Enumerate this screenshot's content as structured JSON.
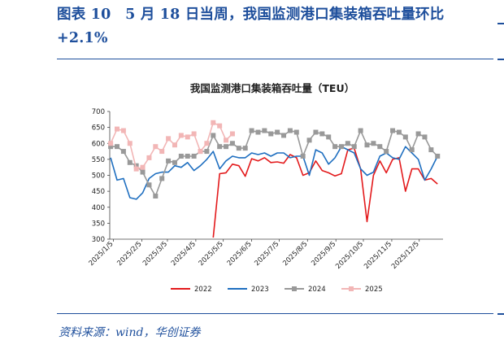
{
  "figure": {
    "title": "图表 10　5 月 18 日当周，我国监测港口集装箱吞吐量环比+2.1%",
    "source": "资料来源：wind，华创证券"
  },
  "chart_data": {
    "type": "line",
    "title": "我国监测港口集装箱吞吐量（TEU）",
    "ylim": [
      300,
      700
    ],
    "yticks": [
      300,
      350,
      400,
      450,
      500,
      550,
      600,
      650,
      700
    ],
    "xlim": [
      "2025-01-01",
      "2025-12-31"
    ],
    "xticks": [
      "2025/1/5",
      "2025/2/5",
      "2025/3/5",
      "2025/4/5",
      "2025/5/5",
      "2025/6/5",
      "2025/7/5",
      "2025/8/5",
      "2025/9/5",
      "2025/10/5",
      "2025/11/5",
      "2025/12/5"
    ],
    "grid": false,
    "legend": "bottom",
    "series": [
      {
        "name": "2022",
        "color": "#e31a1c",
        "marker": "none",
        "x": [
          "2025-04-24",
          "2025-05-01",
          "2025-05-08",
          "2025-05-15",
          "2025-05-22",
          "2025-05-29",
          "2025-06-05",
          "2025-06-12",
          "2025-06-19",
          "2025-06-26",
          "2025-07-03",
          "2025-07-10",
          "2025-07-17",
          "2025-07-24",
          "2025-07-31",
          "2025-08-07",
          "2025-08-14",
          "2025-08-21",
          "2025-08-28",
          "2025-09-04",
          "2025-09-11",
          "2025-09-18",
          "2025-09-25",
          "2025-10-02",
          "2025-10-09",
          "2025-10-16",
          "2025-10-23",
          "2025-10-30",
          "2025-11-06",
          "2025-11-13",
          "2025-11-20",
          "2025-11-27",
          "2025-12-04",
          "2025-12-11",
          "2025-12-18",
          "2025-12-25"
        ],
        "y": [
          305,
          505,
          508,
          535,
          530,
          497,
          552,
          545,
          555,
          540,
          542,
          538,
          565,
          555,
          500,
          508,
          545,
          515,
          508,
          498,
          505,
          580,
          585,
          520,
          355,
          500,
          545,
          508,
          550,
          555,
          450,
          520,
          520,
          485,
          490,
          473
        ]
      },
      {
        "name": "2023",
        "color": "#1f6fc0",
        "marker": "none",
        "x": [
          "2025-01-02",
          "2025-01-09",
          "2025-01-16",
          "2025-01-23",
          "2025-01-30",
          "2025-02-06",
          "2025-02-13",
          "2025-02-20",
          "2025-02-27",
          "2025-03-06",
          "2025-03-13",
          "2025-03-20",
          "2025-03-27",
          "2025-04-03",
          "2025-04-10",
          "2025-04-17",
          "2025-04-24",
          "2025-05-01",
          "2025-05-08",
          "2025-05-15",
          "2025-05-22",
          "2025-05-29",
          "2025-06-05",
          "2025-06-12",
          "2025-06-19",
          "2025-06-26",
          "2025-07-03",
          "2025-07-10",
          "2025-07-17",
          "2025-07-24",
          "2025-07-31",
          "2025-08-07",
          "2025-08-14",
          "2025-08-21",
          "2025-08-28",
          "2025-09-04",
          "2025-09-11",
          "2025-09-18",
          "2025-09-25",
          "2025-10-02",
          "2025-10-09",
          "2025-10-16",
          "2025-10-23",
          "2025-10-30",
          "2025-11-06",
          "2025-11-13",
          "2025-11-20",
          "2025-11-27",
          "2025-12-04",
          "2025-12-11",
          "2025-12-18",
          "2025-12-25"
        ],
        "y": [
          555,
          485,
          490,
          430,
          425,
          445,
          490,
          505,
          510,
          510,
          530,
          525,
          540,
          515,
          530,
          550,
          575,
          520,
          545,
          560,
          555,
          555,
          570,
          565,
          570,
          560,
          570,
          570,
          555,
          560,
          560,
          500,
          580,
          570,
          535,
          555,
          590,
          580,
          570,
          520,
          500,
          510,
          560,
          570,
          555,
          550,
          590,
          570,
          550,
          485,
          520,
          560
        ]
      },
      {
        "name": "2024",
        "color": "#999999",
        "marker": "square",
        "x": [
          "2025-01-02",
          "2025-01-09",
          "2025-01-16",
          "2025-01-23",
          "2025-01-30",
          "2025-02-06",
          "2025-02-13",
          "2025-02-20",
          "2025-02-27",
          "2025-03-06",
          "2025-03-13",
          "2025-03-20",
          "2025-03-27",
          "2025-04-03",
          "2025-04-10",
          "2025-04-17",
          "2025-04-24",
          "2025-05-01",
          "2025-05-08",
          "2025-05-15",
          "2025-05-22",
          "2025-05-29",
          "2025-06-05",
          "2025-06-12",
          "2025-06-19",
          "2025-06-26",
          "2025-07-03",
          "2025-07-10",
          "2025-07-17",
          "2025-07-24",
          "2025-07-31",
          "2025-08-07",
          "2025-08-14",
          "2025-08-21",
          "2025-08-28",
          "2025-09-04",
          "2025-09-11",
          "2025-09-18",
          "2025-09-25",
          "2025-10-02",
          "2025-10-09",
          "2025-10-16",
          "2025-10-23",
          "2025-10-30",
          "2025-11-06",
          "2025-11-13",
          "2025-11-20",
          "2025-11-27",
          "2025-12-04",
          "2025-12-11",
          "2025-12-18",
          "2025-12-25"
        ],
        "y": [
          590,
          590,
          575,
          540,
          530,
          510,
          470,
          435,
          490,
          545,
          540,
          560,
          560,
          560,
          575,
          575,
          625,
          590,
          590,
          600,
          585,
          585,
          640,
          635,
          640,
          630,
          635,
          625,
          640,
          635,
          560,
          610,
          635,
          630,
          620,
          590,
          590,
          600,
          590,
          640,
          595,
          600,
          590,
          575,
          640,
          635,
          620,
          580,
          630,
          620,
          580,
          560
        ]
      },
      {
        "name": "2025",
        "color": "#f2b6b6",
        "marker": "square",
        "x": [
          "2025-01-02",
          "2025-01-09",
          "2025-01-16",
          "2025-01-23",
          "2025-01-30",
          "2025-02-06",
          "2025-02-13",
          "2025-02-20",
          "2025-02-27",
          "2025-03-06",
          "2025-03-13",
          "2025-03-20",
          "2025-03-27",
          "2025-04-03",
          "2025-04-10",
          "2025-04-17",
          "2025-04-24",
          "2025-05-01",
          "2025-05-08",
          "2025-05-15"
        ],
        "y": [
          600,
          645,
          640,
          600,
          520,
          525,
          555,
          590,
          575,
          615,
          595,
          625,
          620,
          630,
          575,
          600,
          665,
          655,
          610,
          630
        ]
      }
    ]
  }
}
